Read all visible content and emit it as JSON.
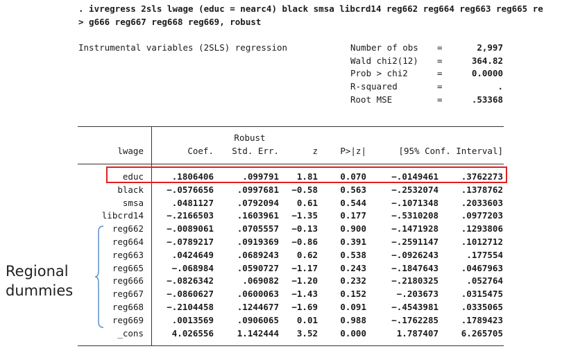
{
  "command": {
    "line1": ". ivregress 2sls lwage (educ = nearc4) black smsa libcrd14 reg662 reg664 reg663 reg665 re",
    "line2": "> g666 reg667 reg668 reg669, robust"
  },
  "title": "Instrumental variables (2SLS) regression",
  "stats": [
    {
      "label": "Number of obs",
      "eq": "=",
      "value": "2,997"
    },
    {
      "label": "Wald chi2(12)",
      "eq": "=",
      "value": "364.82"
    },
    {
      "label": "Prob > chi2",
      "eq": "=",
      "value": "0.0000"
    },
    {
      "label": "R-squared",
      "eq": "=",
      "value": "."
    },
    {
      "label": "Root MSE",
      "eq": "=",
      "value": ".53368"
    }
  ],
  "table": {
    "depvar": "lwage",
    "header_top": "Robust",
    "columns": [
      "Coef.",
      "Std. Err.",
      "z",
      "P>|z|",
      "[95% Conf. Interval]"
    ],
    "rows": [
      {
        "name": "educ",
        "coef": ".1806406",
        "se": ".099791",
        "z": "1.81",
        "p": "0.070",
        "lo": "-.0149461",
        "hi": ".3762273"
      },
      {
        "name": "black",
        "coef": "-.0576656",
        "se": ".0997681",
        "z": "-0.58",
        "p": "0.563",
        "lo": "-.2532074",
        "hi": ".1378762"
      },
      {
        "name": "smsa",
        "coef": ".0481127",
        "se": ".0792094",
        "z": "0.61",
        "p": "0.544",
        "lo": "-.1071348",
        "hi": ".2033603"
      },
      {
        "name": "libcrd14",
        "coef": "-.2166503",
        "se": ".1603961",
        "z": "-1.35",
        "p": "0.177",
        "lo": "-.5310208",
        "hi": ".0977203"
      },
      {
        "name": "reg662",
        "coef": "-.0089061",
        "se": ".0705557",
        "z": "-0.13",
        "p": "0.900",
        "lo": "-.1471928",
        "hi": ".1293806"
      },
      {
        "name": "reg664",
        "coef": "-.0789217",
        "se": ".0919369",
        "z": "-0.86",
        "p": "0.391",
        "lo": "-.2591147",
        "hi": ".1012712"
      },
      {
        "name": "reg663",
        "coef": ".0424649",
        "se": ".0689243",
        "z": "0.62",
        "p": "0.538",
        "lo": "-.0926243",
        "hi": ".177554"
      },
      {
        "name": "reg665",
        "coef": "-.068984",
        "se": ".0590727",
        "z": "-1.17",
        "p": "0.243",
        "lo": "-.1847643",
        "hi": ".0467963"
      },
      {
        "name": "reg666",
        "coef": "-.0826342",
        "se": ".069082",
        "z": "-1.20",
        "p": "0.232",
        "lo": "-.2180325",
        "hi": ".052764"
      },
      {
        "name": "reg667",
        "coef": "-.0860627",
        "se": ".0600063",
        "z": "-1.43",
        "p": "0.152",
        "lo": "-.203673",
        "hi": ".0315475"
      },
      {
        "name": "reg668",
        "coef": "-.2104458",
        "se": ".1244677",
        "z": "-1.69",
        "p": "0.091",
        "lo": "-.4543981",
        "hi": ".0335065"
      },
      {
        "name": "reg669",
        "coef": ".0013569",
        "se": ".0906065",
        "z": "0.01",
        "p": "0.988",
        "lo": "-.1762285",
        "hi": ".1789423"
      },
      {
        "name": "_cons",
        "coef": "4.026556",
        "se": "1.142444",
        "z": "3.52",
        "p": "0.000",
        "lo": "1.787407",
        "hi": "6.265705"
      }
    ]
  },
  "annotation": {
    "label_line1": "Regional",
    "label_line2": "dummies",
    "highlight_color": "#e41e1e",
    "brace_color": "#5b8fc9"
  }
}
